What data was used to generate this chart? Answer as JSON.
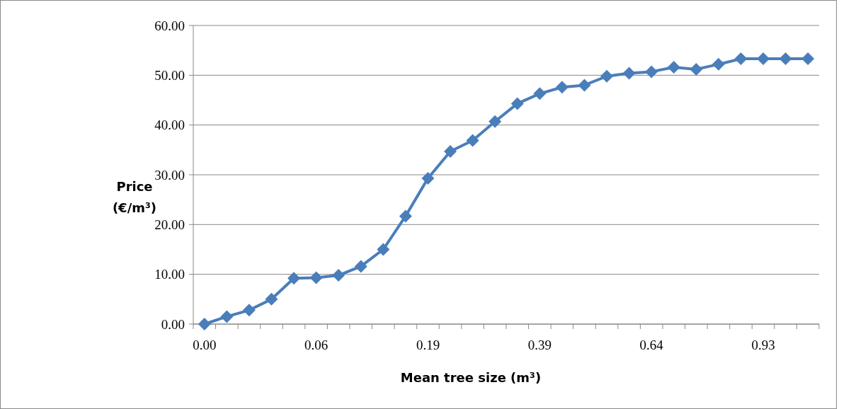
{
  "chart_data": {
    "type": "line",
    "xlabel": "Mean tree size (m³)",
    "ylabel": "Price (€/m³)",
    "categories": [
      "0.00",
      null,
      null,
      null,
      null,
      "0.06",
      null,
      null,
      null,
      null,
      "0.19",
      null,
      null,
      null,
      null,
      "0.39",
      null,
      null,
      null,
      null,
      "0.64",
      null,
      null,
      null,
      null,
      "0.93",
      null,
      null
    ],
    "series": [
      {
        "color": "#4a7ebb",
        "values": [
          0,
          1.5,
          2.8,
          5,
          9.2,
          9.3,
          9.8,
          11.6,
          15,
          21.7,
          29.3,
          34.7,
          36.9,
          40.7,
          44.3,
          46.3,
          47.6,
          48,
          49.8,
          50.4,
          50.7,
          51.6,
          51.2,
          52.2,
          53.3,
          53.3,
          53.3,
          53.3
        ]
      }
    ],
    "ylim": [
      0,
      60
    ],
    "yticks": [
      {
        "value": 0,
        "label": "0.00"
      },
      {
        "value": 10,
        "label": "10.00"
      },
      {
        "value": 20,
        "label": "20.00"
      },
      {
        "value": 30,
        "label": "30.00"
      },
      {
        "value": 40,
        "label": "40.00"
      },
      {
        "value": 50,
        "label": "50.00"
      },
      {
        "value": 60,
        "label": "60.00"
      }
    ],
    "grid": "y",
    "marker": "diamond",
    "line_style": "solid"
  }
}
